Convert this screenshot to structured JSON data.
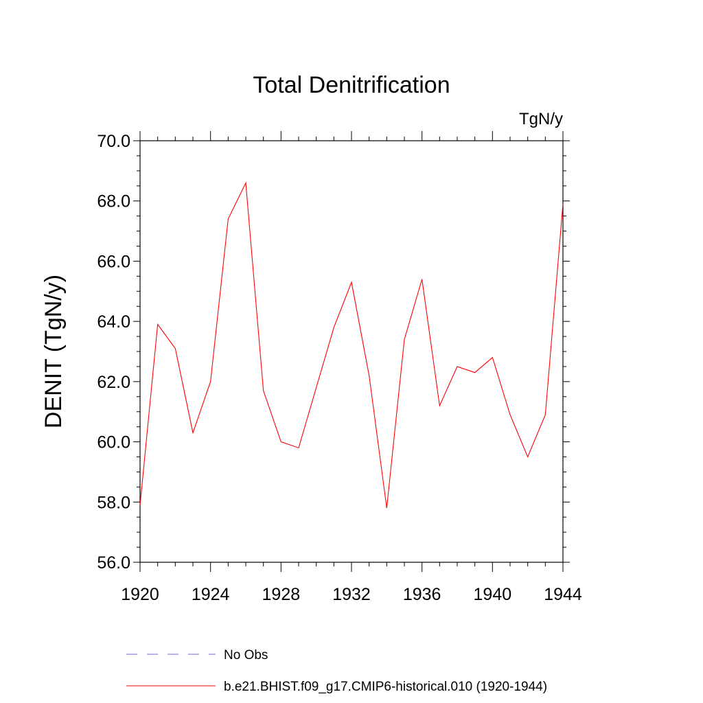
{
  "chart_data": {
    "type": "line",
    "title": "Total Denitrification",
    "units_label": "TgN/y",
    "ylabel": "DENIT  (TgN/y)",
    "xlabel": "",
    "xlim": [
      1920,
      1944
    ],
    "ylim": [
      56.0,
      70.0
    ],
    "x_ticks": [
      1920,
      1924,
      1928,
      1932,
      1936,
      1940,
      1944
    ],
    "x_tick_labels": [
      "1920",
      "1924",
      "1928",
      "1932",
      "1936",
      "1940",
      "1944"
    ],
    "y_ticks": [
      56.0,
      58.0,
      60.0,
      62.0,
      64.0,
      66.0,
      68.0,
      70.0
    ],
    "y_tick_labels": [
      "56.0",
      "58.0",
      "60.0",
      "62.0",
      "64.0",
      "66.0",
      "68.0",
      "70.0"
    ],
    "grid": false,
    "legend_placement": "bottom",
    "series": [
      {
        "name": "b.e21.BHIST.f09_g17.CMIP6-historical.010 (1920-1944)",
        "color": "#ff0000",
        "style": "solid",
        "x": [
          1920,
          1921,
          1922,
          1923,
          1924,
          1925,
          1926,
          1927,
          1928,
          1929,
          1930,
          1931,
          1932,
          1933,
          1934,
          1935,
          1936,
          1937,
          1938,
          1939,
          1940,
          1941,
          1942,
          1943,
          1944
        ],
        "values": [
          57.9,
          63.9,
          63.1,
          60.3,
          62.0,
          67.4,
          68.6,
          61.7,
          60.0,
          59.8,
          61.8,
          63.8,
          65.3,
          62.2,
          57.8,
          63.4,
          65.4,
          61.2,
          62.5,
          62.3,
          62.8,
          60.9,
          59.5,
          60.9,
          67.9
        ]
      }
    ],
    "legend": [
      {
        "label": "No Obs",
        "color": "#6a6ac8",
        "style": "dashed"
      },
      {
        "label": "b.e21.BHIST.f09_g17.CMIP6-historical.010 (1920-1944)",
        "color": "#ff0000",
        "style": "solid"
      }
    ]
  }
}
